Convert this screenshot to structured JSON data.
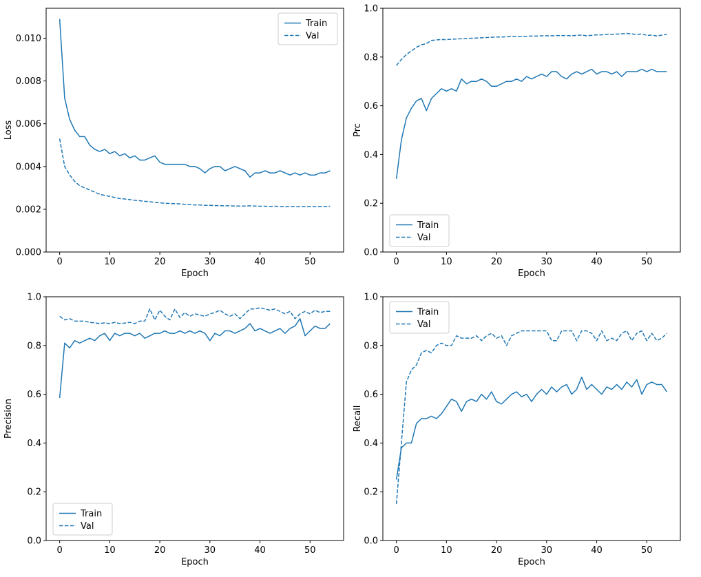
{
  "figure": {
    "background": "#ffffff",
    "accent_color": "#1f77b4"
  },
  "chart_data": [
    {
      "type": "line",
      "title": "",
      "xlabel": "Epoch",
      "ylabel": "Loss",
      "x_start": 0,
      "x_step": 1,
      "xlim": [
        -2.7,
        56.7
      ],
      "ylim": [
        0.0,
        0.0114
      ],
      "grid": false,
      "xticks": [
        0,
        10,
        20,
        30,
        40,
        50
      ],
      "xtick_labels": [
        "0",
        "10",
        "20",
        "30",
        "40",
        "50"
      ],
      "yticks": [
        0.0,
        0.002,
        0.004,
        0.006,
        0.008,
        0.01
      ],
      "ytick_labels": [
        "0.000",
        "0.002",
        "0.004",
        "0.006",
        "0.008",
        "0.010"
      ],
      "legend": {
        "position": "upper-right",
        "labels": [
          "Train",
          "Val"
        ]
      },
      "series": [
        {
          "name": "Train",
          "style": "solid",
          "color": "#1f77b4",
          "values": [
            0.0109,
            0.0072,
            0.0062,
            0.0057,
            0.0054,
            0.0054,
            0.005,
            0.0048,
            0.0047,
            0.0048,
            0.0046,
            0.0047,
            0.0045,
            0.0046,
            0.0044,
            0.0045,
            0.0043,
            0.0043,
            0.0044,
            0.0045,
            0.0042,
            0.0041,
            0.0041,
            0.0041,
            0.0041,
            0.0041,
            0.004,
            0.004,
            0.0039,
            0.0037,
            0.0039,
            0.004,
            0.004,
            0.0038,
            0.0039,
            0.004,
            0.0039,
            0.0038,
            0.0035,
            0.0037,
            0.0037,
            0.0038,
            0.0037,
            0.0037,
            0.0038,
            0.0037,
            0.0036,
            0.0037,
            0.0036,
            0.0037,
            0.0036,
            0.0036,
            0.0037,
            0.0037,
            0.0038
          ]
        },
        {
          "name": "Val",
          "style": "dashed",
          "color": "#1f77b4",
          "values": [
            0.0053,
            0.004,
            0.0036,
            0.0033,
            0.0031,
            0.003,
            0.0029,
            0.0028,
            0.0027,
            0.00265,
            0.0026,
            0.00255,
            0.0025,
            0.00248,
            0.00245,
            0.00242,
            0.0024,
            0.00237,
            0.00235,
            0.00232,
            0.0023,
            0.00228,
            0.00227,
            0.00226,
            0.00225,
            0.00223,
            0.00222,
            0.0022,
            0.0022,
            0.00218,
            0.00218,
            0.00217,
            0.00217,
            0.00216,
            0.00216,
            0.00215,
            0.00215,
            0.00215,
            0.00216,
            0.00215,
            0.00214,
            0.00214,
            0.00213,
            0.00214,
            0.00213,
            0.00212,
            0.00213,
            0.00212,
            0.00212,
            0.00213,
            0.00212,
            0.00212,
            0.00213,
            0.00213,
            0.00214
          ]
        }
      ]
    },
    {
      "type": "line",
      "title": "",
      "xlabel": "Epoch",
      "ylabel": "Prc",
      "x_start": 0,
      "x_step": 1,
      "xlim": [
        -2.7,
        56.7
      ],
      "ylim": [
        0.0,
        1.0
      ],
      "grid": false,
      "xticks": [
        0,
        10,
        20,
        30,
        40,
        50
      ],
      "xtick_labels": [
        "0",
        "10",
        "20",
        "30",
        "40",
        "50"
      ],
      "yticks": [
        0.0,
        0.2,
        0.4,
        0.6,
        0.8,
        1.0
      ],
      "ytick_labels": [
        "0.0",
        "0.2",
        "0.4",
        "0.6",
        "0.8",
        "1.0"
      ],
      "legend": {
        "position": "lower-left",
        "labels": [
          "Train",
          "Val"
        ]
      },
      "series": [
        {
          "name": "Train",
          "style": "solid",
          "color": "#1f77b4",
          "values": [
            0.3,
            0.46,
            0.55,
            0.59,
            0.62,
            0.63,
            0.58,
            0.63,
            0.65,
            0.67,
            0.66,
            0.67,
            0.66,
            0.71,
            0.69,
            0.7,
            0.7,
            0.71,
            0.7,
            0.68,
            0.68,
            0.69,
            0.7,
            0.7,
            0.71,
            0.7,
            0.72,
            0.71,
            0.72,
            0.73,
            0.72,
            0.74,
            0.74,
            0.72,
            0.71,
            0.73,
            0.74,
            0.73,
            0.74,
            0.75,
            0.73,
            0.74,
            0.74,
            0.73,
            0.74,
            0.72,
            0.74,
            0.74,
            0.74,
            0.75,
            0.74,
            0.75,
            0.74,
            0.74,
            0.74
          ]
        },
        {
          "name": "Val",
          "style": "dashed",
          "color": "#1f77b4",
          "values": [
            0.765,
            0.79,
            0.81,
            0.825,
            0.84,
            0.85,
            0.855,
            0.868,
            0.87,
            0.872,
            0.871,
            0.873,
            0.874,
            0.875,
            0.876,
            0.877,
            0.878,
            0.879,
            0.88,
            0.881,
            0.882,
            0.882,
            0.883,
            0.884,
            0.884,
            0.885,
            0.885,
            0.886,
            0.886,
            0.887,
            0.887,
            0.887,
            0.888,
            0.888,
            0.888,
            0.887,
            0.889,
            0.89,
            0.887,
            0.889,
            0.891,
            0.891,
            0.893,
            0.893,
            0.894,
            0.895,
            0.897,
            0.895,
            0.892,
            0.895,
            0.889,
            0.89,
            0.886,
            0.89,
            0.893
          ]
        }
      ]
    },
    {
      "type": "line",
      "title": "",
      "xlabel": "Epoch",
      "ylabel": "Precision",
      "x_start": 0,
      "x_step": 1,
      "xlim": [
        -2.7,
        56.7
      ],
      "ylim": [
        0.0,
        1.0
      ],
      "grid": false,
      "xticks": [
        0,
        10,
        20,
        30,
        40,
        50
      ],
      "xtick_labels": [
        "0",
        "10",
        "20",
        "30",
        "40",
        "50"
      ],
      "yticks": [
        0.0,
        0.2,
        0.4,
        0.6,
        0.8,
        1.0
      ],
      "ytick_labels": [
        "0.0",
        "0.2",
        "0.4",
        "0.6",
        "0.8",
        "1.0"
      ],
      "legend": {
        "position": "lower-left",
        "labels": [
          "Train",
          "Val"
        ]
      },
      "series": [
        {
          "name": "Train",
          "style": "solid",
          "color": "#1f77b4",
          "values": [
            0.585,
            0.81,
            0.79,
            0.82,
            0.81,
            0.82,
            0.83,
            0.82,
            0.84,
            0.85,
            0.82,
            0.85,
            0.84,
            0.85,
            0.85,
            0.84,
            0.85,
            0.83,
            0.84,
            0.85,
            0.85,
            0.86,
            0.85,
            0.85,
            0.86,
            0.85,
            0.86,
            0.85,
            0.86,
            0.85,
            0.82,
            0.85,
            0.84,
            0.86,
            0.86,
            0.85,
            0.86,
            0.87,
            0.89,
            0.86,
            0.87,
            0.86,
            0.85,
            0.86,
            0.87,
            0.85,
            0.87,
            0.88,
            0.91,
            0.84,
            0.86,
            0.88,
            0.87,
            0.87,
            0.89
          ]
        },
        {
          "name": "Val",
          "style": "dashed",
          "color": "#1f77b4",
          "values": [
            0.92,
            0.905,
            0.91,
            0.9,
            0.9,
            0.9,
            0.895,
            0.893,
            0.89,
            0.893,
            0.89,
            0.895,
            0.89,
            0.892,
            0.895,
            0.89,
            0.9,
            0.9,
            0.95,
            0.905,
            0.945,
            0.92,
            0.905,
            0.95,
            0.915,
            0.935,
            0.92,
            0.93,
            0.925,
            0.92,
            0.93,
            0.935,
            0.945,
            0.93,
            0.92,
            0.93,
            0.91,
            0.93,
            0.95,
            0.95,
            0.955,
            0.95,
            0.945,
            0.95,
            0.94,
            0.93,
            0.94,
            0.91,
            0.93,
            0.94,
            0.93,
            0.945,
            0.935,
            0.94,
            0.94
          ]
        }
      ]
    },
    {
      "type": "line",
      "title": "",
      "xlabel": "Epoch",
      "ylabel": "Recall",
      "x_start": 0,
      "x_step": 1,
      "xlim": [
        -2.7,
        56.7
      ],
      "ylim": [
        0.0,
        1.0
      ],
      "grid": false,
      "xticks": [
        0,
        10,
        20,
        30,
        40,
        50
      ],
      "xtick_labels": [
        "0",
        "10",
        "20",
        "30",
        "40",
        "50"
      ],
      "yticks": [
        0.0,
        0.2,
        0.4,
        0.6,
        0.8,
        1.0
      ],
      "ytick_labels": [
        "0.0",
        "0.2",
        "0.4",
        "0.6",
        "0.8",
        "1.0"
      ],
      "legend": {
        "position": "upper-left",
        "labels": [
          "Train",
          "Val"
        ]
      },
      "series": [
        {
          "name": "Train",
          "style": "solid",
          "color": "#1f77b4",
          "values": [
            0.25,
            0.38,
            0.4,
            0.4,
            0.48,
            0.5,
            0.5,
            0.51,
            0.5,
            0.52,
            0.55,
            0.58,
            0.57,
            0.53,
            0.57,
            0.58,
            0.57,
            0.6,
            0.58,
            0.61,
            0.57,
            0.56,
            0.58,
            0.6,
            0.61,
            0.59,
            0.6,
            0.57,
            0.6,
            0.62,
            0.6,
            0.63,
            0.61,
            0.63,
            0.64,
            0.6,
            0.62,
            0.67,
            0.62,
            0.64,
            0.62,
            0.6,
            0.63,
            0.62,
            0.64,
            0.62,
            0.65,
            0.63,
            0.66,
            0.6,
            0.64,
            0.65,
            0.64,
            0.64,
            0.61
          ]
        },
        {
          "name": "Val",
          "style": "dashed",
          "color": "#1f77b4",
          "values": [
            0.15,
            0.4,
            0.65,
            0.7,
            0.72,
            0.77,
            0.78,
            0.77,
            0.8,
            0.81,
            0.8,
            0.8,
            0.84,
            0.83,
            0.83,
            0.83,
            0.84,
            0.82,
            0.84,
            0.85,
            0.83,
            0.84,
            0.8,
            0.84,
            0.85,
            0.86,
            0.86,
            0.86,
            0.86,
            0.86,
            0.86,
            0.82,
            0.82,
            0.86,
            0.86,
            0.86,
            0.82,
            0.86,
            0.86,
            0.85,
            0.82,
            0.86,
            0.82,
            0.83,
            0.82,
            0.85,
            0.86,
            0.82,
            0.85,
            0.86,
            0.82,
            0.85,
            0.82,
            0.83,
            0.85
          ]
        }
      ]
    }
  ]
}
